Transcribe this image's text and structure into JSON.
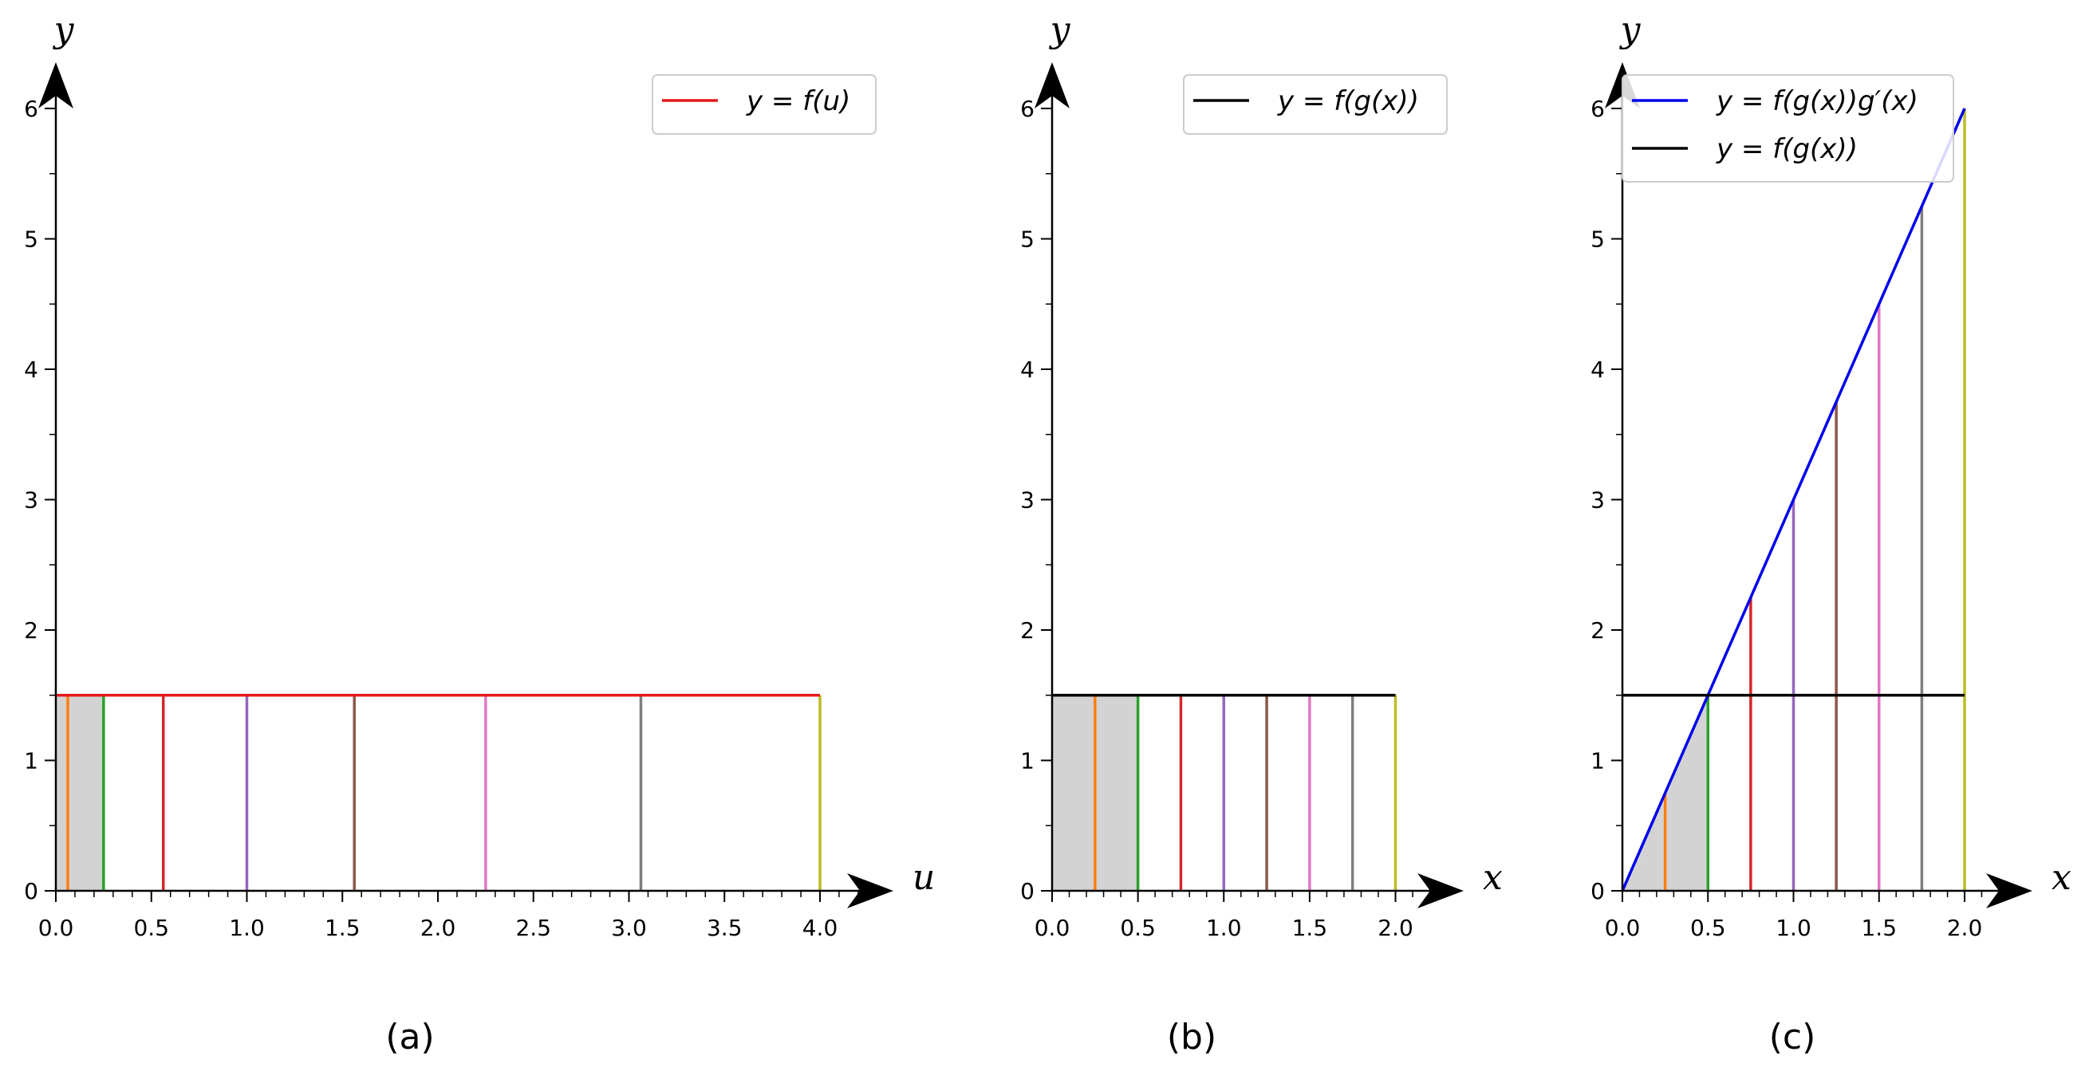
{
  "chart_data": [
    {
      "type": "line",
      "panel": "a",
      "caption": "(a)",
      "xlabel": "u",
      "ylabel": "y",
      "xlim": [
        0,
        4.3
      ],
      "ylim": [
        0,
        6.2
      ],
      "xticks": [
        "0.0",
        "0.5",
        "1.0",
        "1.5",
        "2.0",
        "2.5",
        "3.0",
        "3.5",
        "4.0"
      ],
      "yticks": [
        "0",
        "1",
        "2",
        "3",
        "4",
        "5",
        "6"
      ],
      "legend": "top-right",
      "series": [
        {
          "name": "y = f(u)",
          "color": "#e41a1c",
          "x": [
            0,
            4
          ],
          "y": [
            1.5,
            1.5
          ]
        }
      ],
      "shaded_region": {
        "x": [
          0,
          0.25
        ],
        "y_top": 1.5,
        "color": "#d3d3d3"
      },
      "vertical_lines": [
        {
          "x": 0.0625,
          "top": 1.5,
          "color": "#ff7f0e"
        },
        {
          "x": 0.25,
          "top": 1.5,
          "color": "#2ca02c"
        },
        {
          "x": 0.5625,
          "top": 1.5,
          "color": "#d62728"
        },
        {
          "x": 1.0,
          "top": 1.5,
          "color": "#9467bd"
        },
        {
          "x": 1.5625,
          "top": 1.5,
          "color": "#8c564b"
        },
        {
          "x": 2.25,
          "top": 1.5,
          "color": "#e377c2"
        },
        {
          "x": 3.0625,
          "top": 1.5,
          "color": "#7f7f7f"
        },
        {
          "x": 4.0,
          "top": 1.5,
          "color": "#bcbd22"
        }
      ]
    },
    {
      "type": "line",
      "panel": "b",
      "caption": "(b)",
      "xlabel": "x",
      "ylabel": "y",
      "xlim": [
        0,
        2.3
      ],
      "ylim": [
        0,
        6.2
      ],
      "xticks": [
        "0.0",
        "0.5",
        "1.0",
        "1.5",
        "2.0"
      ],
      "yticks": [
        "0",
        "1",
        "2",
        "3",
        "4",
        "5",
        "6"
      ],
      "legend": "top-right",
      "series": [
        {
          "name": "y = f(g(x))",
          "color": "#000000",
          "x": [
            0,
            2
          ],
          "y": [
            1.5,
            1.5
          ]
        }
      ],
      "shaded_region": {
        "x": [
          0,
          0.5
        ],
        "y_top": 1.5,
        "color": "#d3d3d3"
      },
      "vertical_lines": [
        {
          "x": 0.25,
          "top": 1.5,
          "color": "#ff7f0e"
        },
        {
          "x": 0.5,
          "top": 1.5,
          "color": "#2ca02c"
        },
        {
          "x": 0.75,
          "top": 1.5,
          "color": "#d62728"
        },
        {
          "x": 1.0,
          "top": 1.5,
          "color": "#9467bd"
        },
        {
          "x": 1.25,
          "top": 1.5,
          "color": "#8c564b"
        },
        {
          "x": 1.5,
          "top": 1.5,
          "color": "#e377c2"
        },
        {
          "x": 1.75,
          "top": 1.5,
          "color": "#7f7f7f"
        },
        {
          "x": 2.0,
          "top": 1.5,
          "color": "#bcbd22"
        }
      ]
    },
    {
      "type": "line",
      "panel": "c",
      "caption": "(c)",
      "xlabel": "x",
      "ylabel": "y",
      "xlim": [
        0,
        2.3
      ],
      "ylim": [
        0,
        6.2
      ],
      "xticks": [
        "0.0",
        "0.5",
        "1.0",
        "1.5",
        "2.0"
      ],
      "yticks": [
        "0",
        "1",
        "2",
        "3",
        "4",
        "5",
        "6"
      ],
      "legend": "top-left",
      "series": [
        {
          "name": "y = f(g(x))g′(x)",
          "color": "#0000ee",
          "x": [
            0,
            2
          ],
          "y": [
            0,
            6
          ]
        },
        {
          "name": "y = f(g(x))",
          "color": "#000000",
          "x": [
            0,
            2
          ],
          "y": [
            1.5,
            1.5
          ]
        }
      ],
      "shaded_region": {
        "x": [
          0,
          0.5
        ],
        "y_line_slope": 3,
        "color": "#d3d3d3"
      },
      "vertical_lines": [
        {
          "x": 0.25,
          "top": 0.75,
          "color": "#ff7f0e"
        },
        {
          "x": 0.5,
          "top": 1.5,
          "color": "#2ca02c"
        },
        {
          "x": 0.75,
          "top": 2.25,
          "color": "#d62728"
        },
        {
          "x": 1.0,
          "top": 3.0,
          "color": "#9467bd"
        },
        {
          "x": 1.25,
          "top": 3.75,
          "color": "#8c564b"
        },
        {
          "x": 1.5,
          "top": 4.5,
          "color": "#e377c2"
        },
        {
          "x": 1.75,
          "top": 5.25,
          "color": "#7f7f7f"
        },
        {
          "x": 2.0,
          "top": 6.0,
          "color": "#bcbd22"
        }
      ]
    }
  ]
}
